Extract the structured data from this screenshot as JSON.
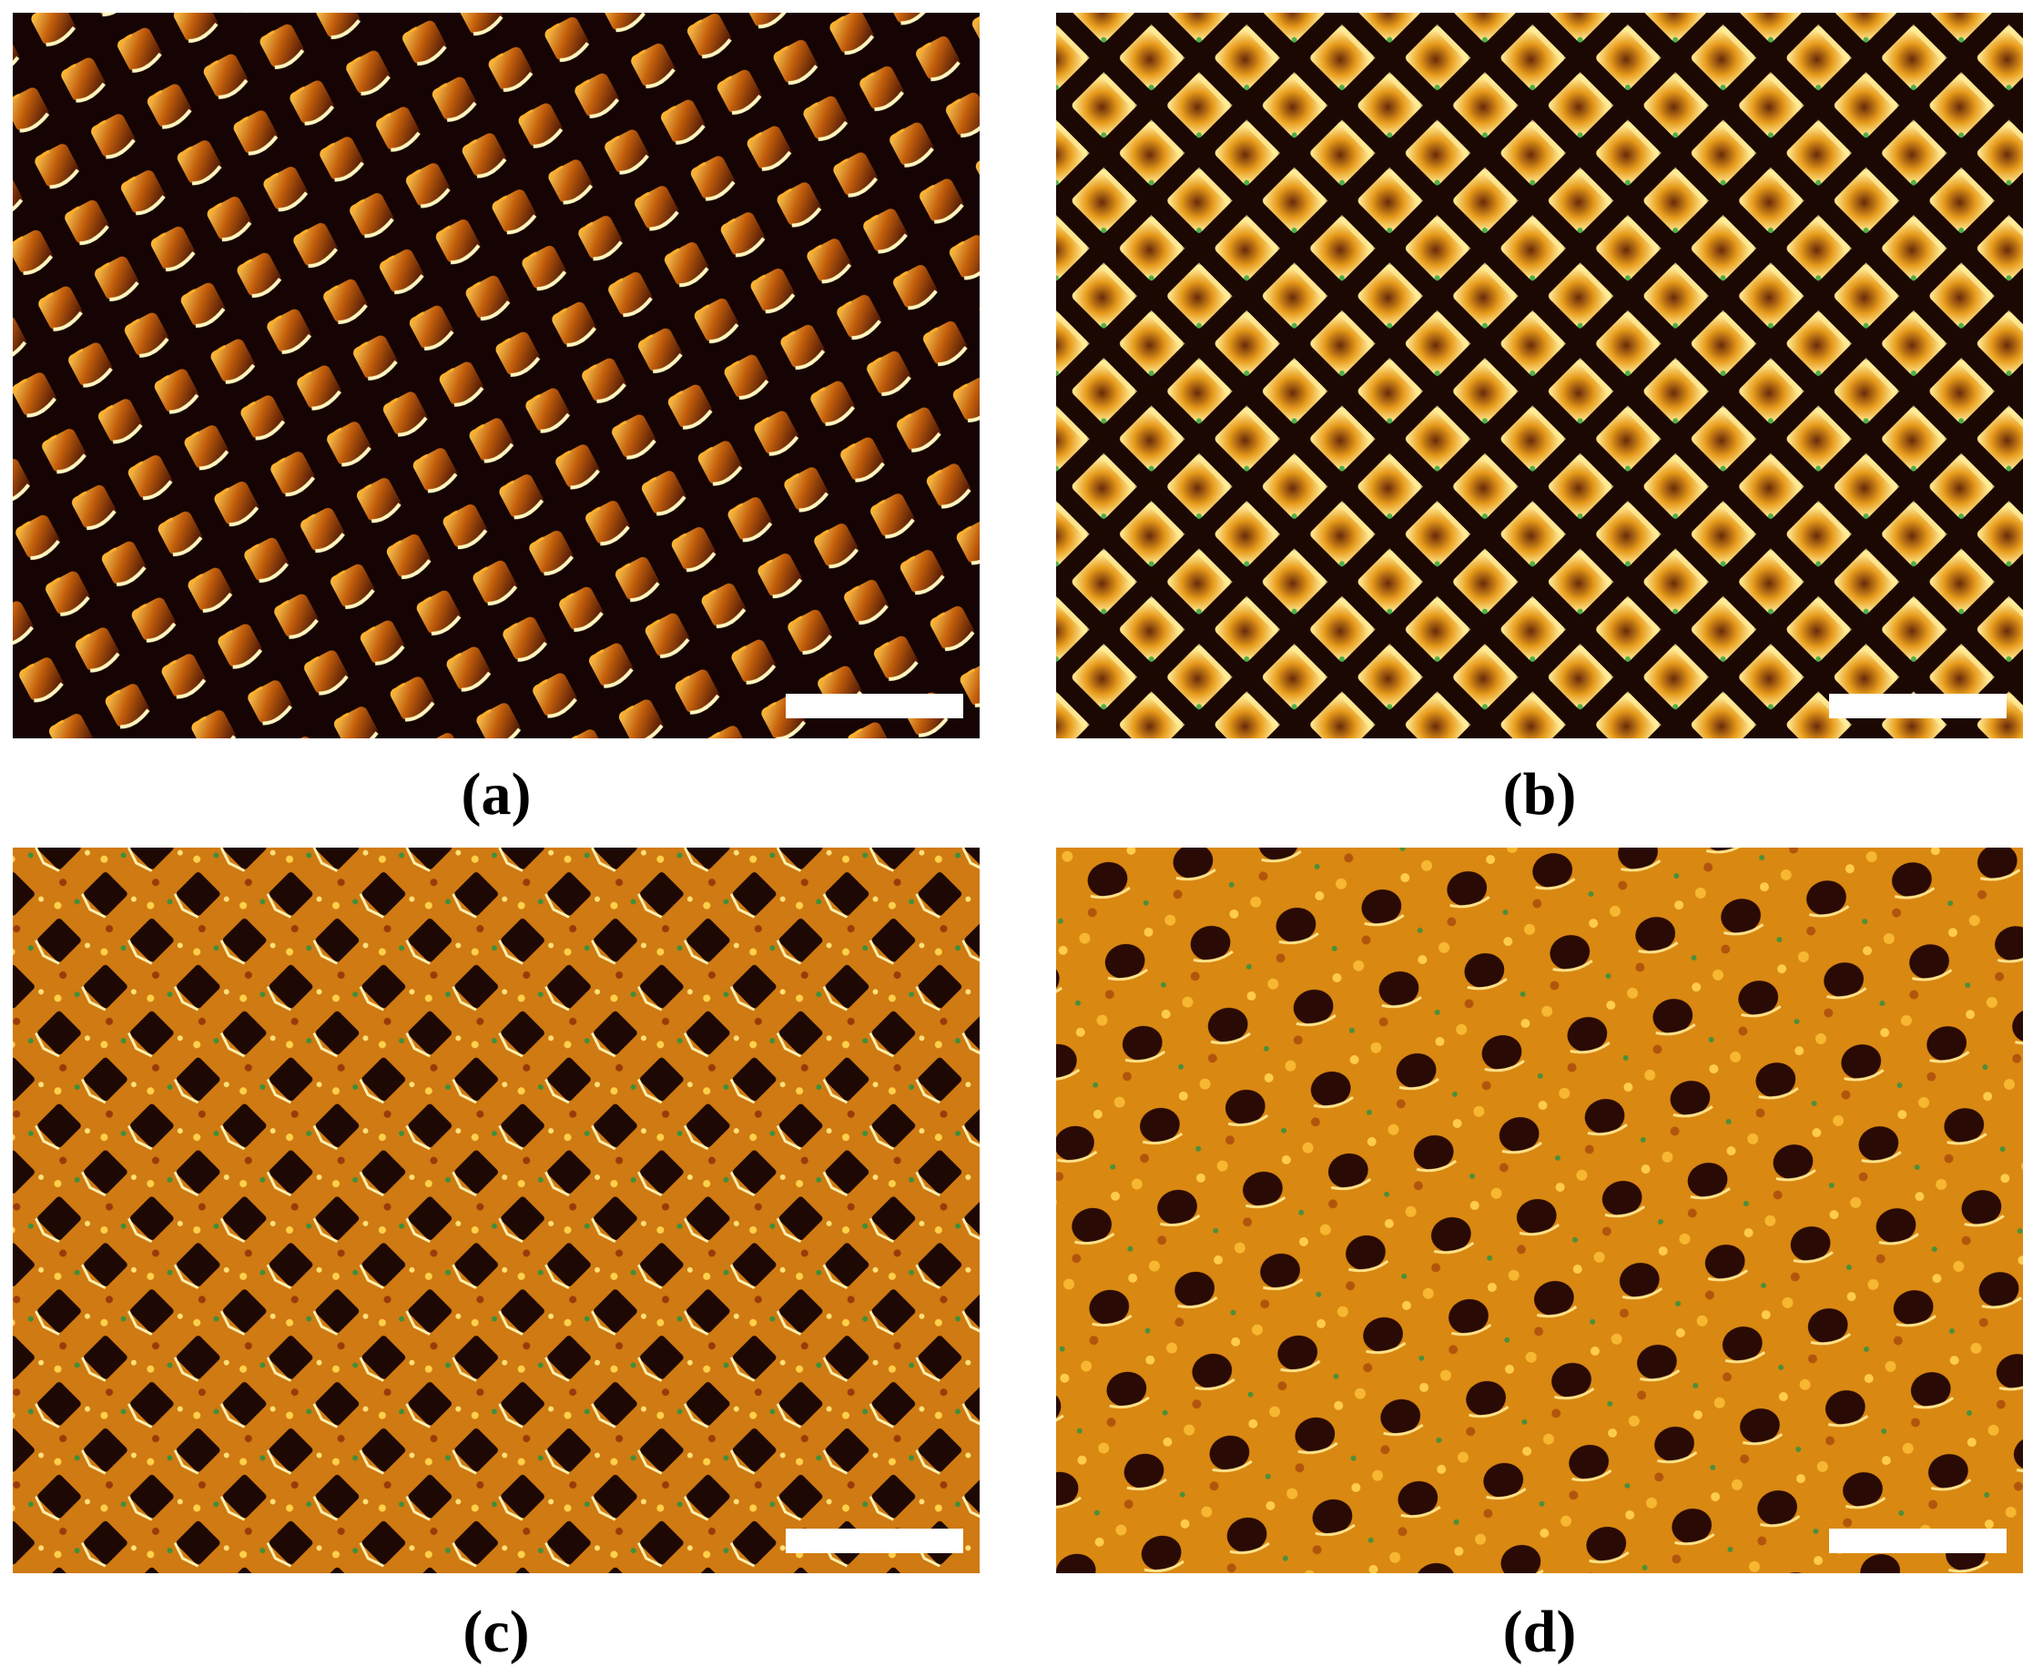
{
  "figure": {
    "panels": [
      {
        "id": "a",
        "label": "(a)",
        "image": "micrograph-regular-square-array-on-dark-background",
        "has_scale_bar": true
      },
      {
        "id": "b",
        "label": "(b)",
        "image": "micrograph-diamond-array-bright-cells",
        "has_scale_bar": true
      },
      {
        "id": "c",
        "label": "(c)",
        "image": "micrograph-dark-pits-in-granular-orange-texture",
        "has_scale_bar": true
      },
      {
        "id": "d",
        "label": "(d)",
        "image": "micrograph-faint-dark-pits-in-dense-orange-texture",
        "has_scale_bar": true
      }
    ],
    "colors": {
      "dark": "#1a0504",
      "orange": "#e08a10",
      "yellow": "#ffe27a",
      "green": "#3f8f3a",
      "scale_bar": "#ffffff"
    }
  }
}
